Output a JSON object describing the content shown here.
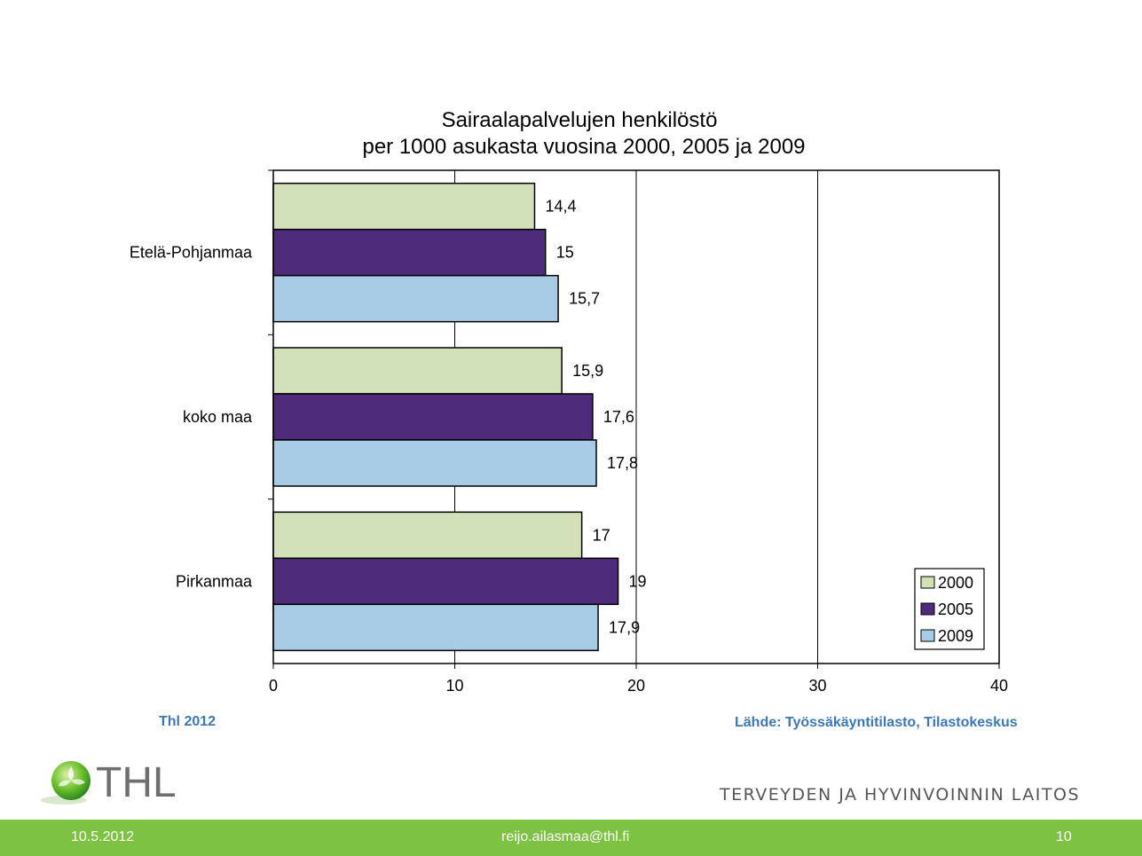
{
  "chart_data": {
    "type": "bar",
    "orientation": "horizontal",
    "title": "Sairaalapalvelujen henkilöstö",
    "subtitle": "per 1000 asukasta vuosina 2000, 2005 ja 2009",
    "categories": [
      "Etelä-Pohjanmaa",
      "koko maa",
      "Pirkanmaa"
    ],
    "series": [
      {
        "name": "2000",
        "color": "#d3e1b8",
        "values": [
          14.4,
          15.9,
          17
        ],
        "labels": [
          "14,4",
          "15,9",
          "17"
        ]
      },
      {
        "name": "2005",
        "color": "#4f2b7c",
        "values": [
          15,
          17.6,
          19
        ],
        "labels": [
          "15",
          "17,6",
          "19"
        ]
      },
      {
        "name": "2009",
        "color": "#a9cce6",
        "values": [
          15.7,
          17.8,
          17.9
        ],
        "labels": [
          "15,7",
          "17,8",
          "17,9"
        ]
      }
    ],
    "xlim": [
      0,
      40
    ],
    "xticks": [
      "0",
      "10",
      "20",
      "30",
      "40"
    ],
    "grid": true,
    "legend": "bottom-right"
  },
  "source_left": "Thl 2012",
  "source_right": "Lähde: Työssäkäyntitilasto, Tilastokeskus",
  "logo_text": "THL",
  "org_name": "TERVEYDEN JA HYVINVOINNIN LAITOS",
  "footer": {
    "date": "10.5.2012",
    "email": "reijo.ailasmaa@thl.fi",
    "page": "10"
  },
  "colors": {
    "footer_bg": "#7dc242",
    "source_text": "#3a78b8"
  }
}
